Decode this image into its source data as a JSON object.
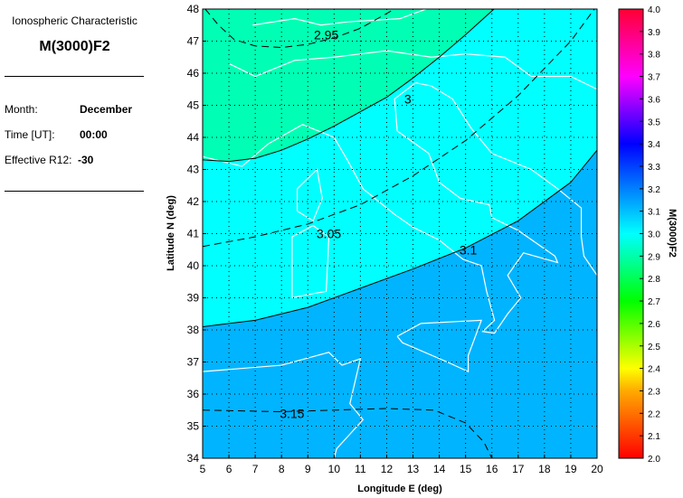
{
  "info": {
    "subtitle": "Ionospheric Characteristic",
    "title": "M(3000)F2",
    "month_label": "Month:",
    "month_value": "December",
    "time_label": "Time [UT]:",
    "time_value": "00:00",
    "r12_label": "Effective R12:",
    "r12_value": "-30"
  },
  "chart_data": {
    "type": "contour-map",
    "xlabel": "Longitude E (deg)",
    "ylabel": "Latitude N (deg)",
    "xlim": [
      5,
      20
    ],
    "ylim": [
      34,
      48
    ],
    "xticks": [
      "5",
      "6",
      "7",
      "8",
      "9",
      "10",
      "11",
      "12",
      "13",
      "14",
      "15",
      "16",
      "17",
      "18",
      "19",
      "20"
    ],
    "yticks": [
      "34",
      "35",
      "36",
      "37",
      "38",
      "39",
      "40",
      "41",
      "42",
      "43",
      "44",
      "45",
      "46",
      "47",
      "48"
    ],
    "grid": true,
    "fill_colors": {
      "below_3.0": "#00ffb4",
      "3.0_to_3.1": "#00ffff",
      "above_3.1": "#00b4ff"
    },
    "contours": [
      {
        "level": "2.95",
        "style": "dashed",
        "label_at": [
          9.7,
          47.2
        ],
        "points": [
          [
            5.1,
            48
          ],
          [
            5.6,
            47.5
          ],
          [
            6.2,
            47.05
          ],
          [
            7,
            46.85
          ],
          [
            8,
            46.8
          ],
          [
            9,
            46.9
          ],
          [
            10,
            47.1
          ],
          [
            11,
            47.4
          ],
          [
            12.3,
            48
          ]
        ]
      },
      {
        "level": "3",
        "style": "solid",
        "label_at": [
          12.8,
          45.2
        ],
        "points": [
          [
            5,
            43.3
          ],
          [
            6,
            43.25
          ],
          [
            7,
            43.35
          ],
          [
            8,
            43.6
          ],
          [
            9,
            43.95
          ],
          [
            10,
            44.35
          ],
          [
            11,
            44.8
          ],
          [
            12,
            45.25
          ],
          [
            13,
            45.85
          ],
          [
            14,
            46.5
          ],
          [
            15,
            47.2
          ],
          [
            16.08,
            48
          ]
        ]
      },
      {
        "level": "3.05",
        "style": "dashed",
        "label_at": [
          9.8,
          41.0
        ],
        "points": [
          [
            5,
            40.6
          ],
          [
            7,
            40.9
          ],
          [
            9,
            41.3
          ],
          [
            11,
            41.9
          ],
          [
            13,
            42.8
          ],
          [
            15,
            43.9
          ],
          [
            17,
            45.3
          ],
          [
            19,
            47
          ],
          [
            19.9,
            48
          ]
        ]
      },
      {
        "level": "3.1",
        "style": "solid",
        "label_at": [
          15.1,
          40.5
        ],
        "points": [
          [
            5,
            38.1
          ],
          [
            7,
            38.3
          ],
          [
            9,
            38.7
          ],
          [
            11,
            39.3
          ],
          [
            13,
            39.9
          ],
          [
            15,
            40.55
          ],
          [
            17,
            41.4
          ],
          [
            19,
            42.6
          ],
          [
            20,
            43.6
          ]
        ]
      },
      {
        "level": "3.15",
        "style": "dashed",
        "label_at": [
          8.4,
          35.4
        ],
        "points": [
          [
            5,
            35.5
          ],
          [
            8,
            35.45
          ],
          [
            10,
            35.5
          ],
          [
            12,
            35.55
          ],
          [
            13.8,
            35.5
          ],
          [
            15,
            35.1
          ],
          [
            15.7,
            34.5
          ],
          [
            16,
            34
          ]
        ]
      }
    ],
    "colorbar": {
      "label": "M(3000)F2",
      "range": [
        2.0,
        4.0
      ],
      "ticks": [
        "2.0",
        "2.1",
        "2.2",
        "2.3",
        "2.4",
        "2.5",
        "2.6",
        "2.7",
        "2.8",
        "2.9",
        "3.0",
        "3.1",
        "3.2",
        "3.3",
        "3.4",
        "3.5",
        "3.6",
        "3.7",
        "3.8",
        "3.9",
        "4.0"
      ],
      "stops": [
        [
          2.0,
          "#ff0000"
        ],
        [
          2.3,
          "#ffaa00"
        ],
        [
          2.4,
          "#ffff00"
        ],
        [
          2.7,
          "#00ff00"
        ],
        [
          3.0,
          "#00ffff"
        ],
        [
          3.4,
          "#0000ff"
        ],
        [
          3.7,
          "#ff00ff"
        ],
        [
          4.0,
          "#ff0033"
        ]
      ]
    }
  }
}
